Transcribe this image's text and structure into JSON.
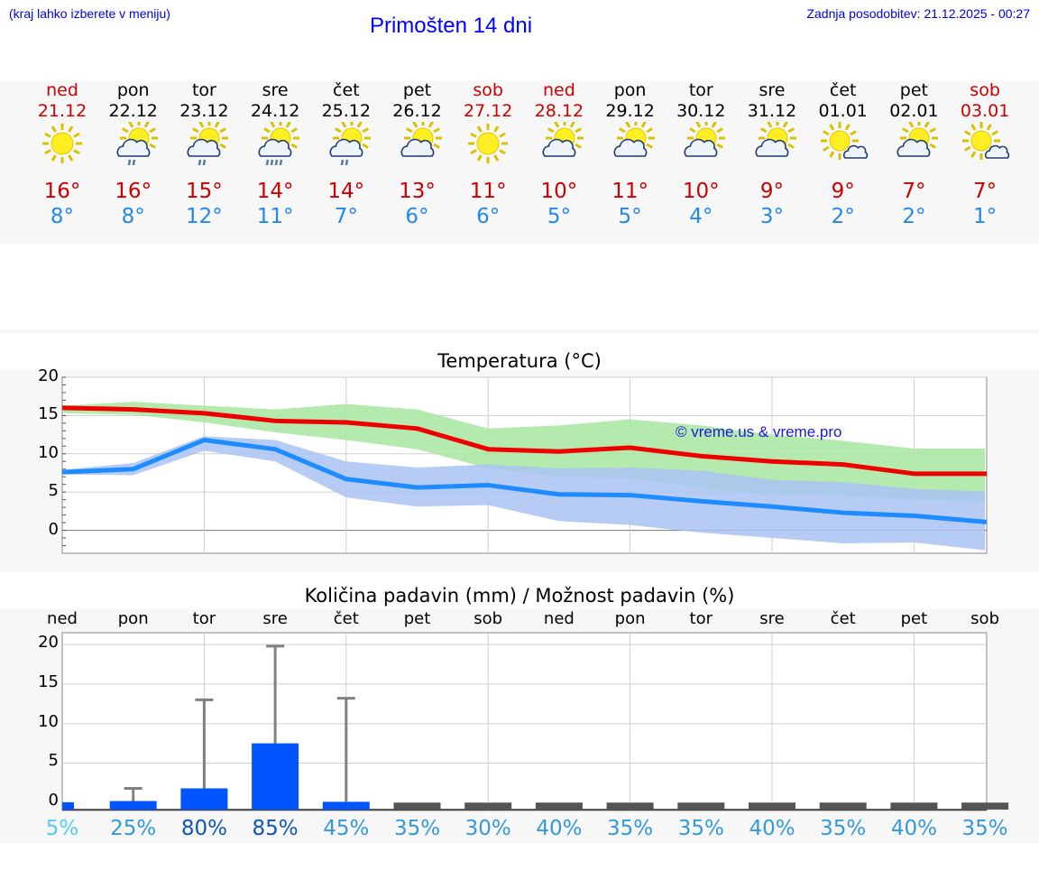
{
  "header": {
    "menu_hint": "(kraj lahko izberete v meniju)",
    "title": "Primošten 14 dni",
    "updated": "Zadnja posodobitev: 21.12.2025 - 00:27"
  },
  "colors": {
    "max_temp": "#cc0000",
    "min_temp": "#2288ee",
    "max_band": "#a8e6a0",
    "min_band": "#a9c3f2",
    "rain_bar": "#0055ff",
    "weekend": "#cc0000"
  },
  "days": [
    {
      "name": "ned",
      "date": "21.12",
      "weekend": true,
      "icon": "sun-icon",
      "max": "16°",
      "min": "8°"
    },
    {
      "name": "pon",
      "date": "22.12",
      "weekend": false,
      "icon": "sun-cloud-rain-icon",
      "max": "16°",
      "min": "8°"
    },
    {
      "name": "tor",
      "date": "23.12",
      "weekend": false,
      "icon": "sun-cloud-rain-icon",
      "max": "15°",
      "min": "12°"
    },
    {
      "name": "sre",
      "date": "24.12",
      "weekend": false,
      "icon": "sun-cloud-heavy-rain-icon",
      "max": "14°",
      "min": "11°"
    },
    {
      "name": "čet",
      "date": "25.12",
      "weekend": false,
      "icon": "sun-cloud-rain-icon",
      "max": "14°",
      "min": "7°"
    },
    {
      "name": "pet",
      "date": "26.12",
      "weekend": false,
      "icon": "sun-cloud-icon",
      "max": "13°",
      "min": "6°"
    },
    {
      "name": "sob",
      "date": "27.12",
      "weekend": true,
      "icon": "sun-icon",
      "max": "11°",
      "min": "6°"
    },
    {
      "name": "ned",
      "date": "28.12",
      "weekend": true,
      "icon": "sun-cloud-icon",
      "max": "10°",
      "min": "5°"
    },
    {
      "name": "pon",
      "date": "29.12",
      "weekend": false,
      "icon": "sun-cloud-icon",
      "max": "11°",
      "min": "5°"
    },
    {
      "name": "tor",
      "date": "30.12",
      "weekend": false,
      "icon": "sun-cloud-icon",
      "max": "10°",
      "min": "4°"
    },
    {
      "name": "sre",
      "date": "31.12",
      "weekend": false,
      "icon": "sun-cloud-icon",
      "max": "9°",
      "min": "3°"
    },
    {
      "name": "čet",
      "date": "01.01",
      "weekend": false,
      "icon": "sun-small-cloud-icon",
      "max": "9°",
      "min": "2°"
    },
    {
      "name": "pet",
      "date": "02.01",
      "weekend": false,
      "icon": "sun-cloud-icon",
      "max": "7°",
      "min": "2°"
    },
    {
      "name": "sob",
      "date": "03.01",
      "weekend": true,
      "icon": "sun-small-cloud-icon",
      "max": "7°",
      "min": "1°"
    }
  ],
  "chart_data": [
    {
      "type": "line",
      "title": "Temperatura (°C)",
      "ylim": [
        -3,
        20
      ],
      "yticks": [
        "20",
        "15",
        "10",
        "5",
        "0"
      ],
      "watermark": "© vreme.us & vreme.pro",
      "categories": [
        "21.12",
        "22.12",
        "23.12",
        "24.12",
        "25.12",
        "26.12",
        "27.12",
        "28.12",
        "29.12",
        "30.12",
        "31.12",
        "01.01",
        "02.01",
        "03.01"
      ],
      "series": [
        {
          "name": "max",
          "values": [
            16,
            15.8,
            15.3,
            14.3,
            14.1,
            13.3,
            10.6,
            10.3,
            10.8,
            9.7,
            9.0,
            8.6,
            7.4,
            7.4
          ]
        },
        {
          "name": "min",
          "values": [
            7.6,
            8.0,
            11.8,
            10.6,
            6.7,
            5.6,
            5.9,
            4.7,
            4.6,
            3.8,
            3.1,
            2.3,
            1.9,
            1.1
          ]
        },
        {
          "name": "max_range_high",
          "values": [
            16.3,
            16.8,
            16.3,
            15.8,
            16.5,
            15.8,
            13.3,
            13.7,
            14.5,
            13.7,
            12.5,
            11.7,
            10.7,
            10.7
          ]
        },
        {
          "name": "max_range_low",
          "values": [
            15.3,
            15.1,
            14.1,
            12.8,
            11.8,
            10.6,
            8.1,
            7.0,
            6.8,
            5.5,
            4.6,
            4.5,
            4.0,
            3.8
          ]
        },
        {
          "name": "min_range_high",
          "values": [
            7.9,
            8.8,
            12.3,
            11.8,
            9.0,
            8.2,
            8.6,
            8.1,
            8.2,
            7.8,
            6.6,
            6.3,
            5.4,
            5.1
          ]
        },
        {
          "name": "min_range_low",
          "values": [
            7.3,
            7.2,
            10.4,
            9.0,
            4.3,
            3.1,
            3.3,
            1.2,
            0.7,
            -0.3,
            -1.0,
            -1.7,
            -1.6,
            -2.6
          ]
        }
      ]
    },
    {
      "type": "bar",
      "title": "Količina padavin (mm) / Možnost padavin (%)",
      "ylim": [
        -1,
        21.5
      ],
      "yticks": [
        "20",
        "15",
        "10",
        "5",
        "0"
      ],
      "categories": [
        "ned",
        "pon",
        "tor",
        "sre",
        "čet",
        "pet",
        "sob",
        "ned",
        "pon",
        "tor",
        "sre",
        "čet",
        "pet",
        "sob"
      ],
      "values": [
        0.05,
        0.2,
        1.8,
        7.5,
        0.1,
        0,
        0,
        0,
        0,
        0,
        0,
        0,
        0,
        0
      ],
      "error_high": [
        0.05,
        1.8,
        13.0,
        19.8,
        13.2,
        0,
        0,
        0,
        0,
        0,
        0,
        0,
        0,
        0
      ],
      "probability": [
        "5%",
        "25%",
        "80%",
        "85%",
        "45%",
        "35%",
        "30%",
        "40%",
        "35%",
        "35%",
        "40%",
        "35%",
        "40%",
        "35%"
      ],
      "probability_colors": [
        "#55ccee",
        "#3399dd",
        "#1155bb",
        "#1155bb",
        "#3399dd",
        "#3399dd",
        "#3399dd",
        "#3399dd",
        "#3399dd",
        "#3399dd",
        "#3399dd",
        "#3399dd",
        "#3399dd",
        "#3399dd"
      ]
    }
  ]
}
